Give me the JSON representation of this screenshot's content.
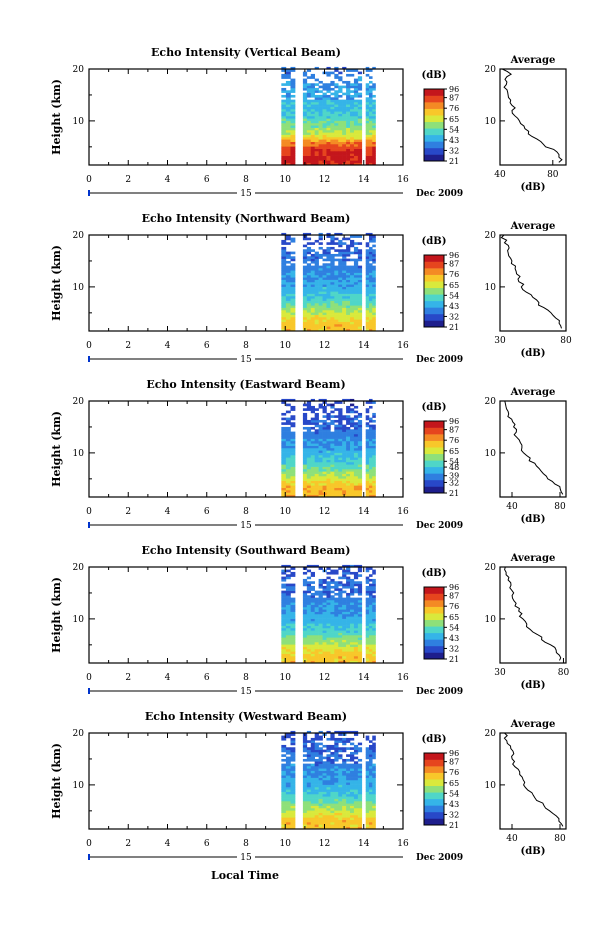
{
  "figure": {
    "xlabel": "Local Time",
    "date_label": "Dec 2009",
    "day_label": "15",
    "ylabel": "Height (km)",
    "cbar_unit": "(dB)",
    "avg_title": "Average",
    "avg_xlabel": "(dB)"
  },
  "colormap": [
    "#1e1e8c",
    "#2848c8",
    "#2f7fe0",
    "#35b4e8",
    "#4fd6c8",
    "#8ee07a",
    "#d9e93c",
    "#f8c72a",
    "#f48a24",
    "#e6451e",
    "#c4161c"
  ],
  "chart_data": [
    {
      "type": "heatmap",
      "title": "Echo Intensity (Vertical Beam)",
      "xlabel": "Local Time",
      "ylabel": "Height (km)",
      "xlim": [
        0,
        16
      ],
      "ylim": [
        1.5,
        20
      ],
      "xticks": [
        0,
        2,
        4,
        6,
        8,
        10,
        12,
        14,
        16
      ],
      "xtick_labels": [
        "0",
        "2",
        "4",
        "6",
        "8",
        "10",
        "12",
        "14",
        "16"
      ],
      "yticks": [
        10,
        20
      ],
      "ytick_labels": [
        "10",
        "20"
      ],
      "colorbar": {
        "unit": "(dB)",
        "range": [
          21,
          96
        ],
        "ticks": [
          21,
          32,
          43,
          54,
          65,
          76,
          87,
          96
        ],
        "labels": [
          "21",
          "32",
          "43",
          "54",
          "65",
          "76",
          "87",
          "96"
        ]
      },
      "data_segments": [
        [
          9.8,
          10.5
        ],
        [
          10.9,
          13.9
        ],
        [
          14.1,
          14.6
        ]
      ],
      "profile": [
        [
          1.5,
          90
        ],
        [
          3,
          92
        ],
        [
          5,
          85
        ],
        [
          7,
          65
        ],
        [
          9,
          56
        ],
        [
          11,
          48
        ],
        [
          13,
          46
        ],
        [
          15,
          42
        ],
        [
          17,
          40
        ],
        [
          19,
          36
        ]
      ],
      "average": {
        "title": "Average",
        "xlabel": "(dB)",
        "xlim": [
          40,
          90
        ],
        "xticks": [
          40,
          80
        ],
        "xtick_labels": [
          "40",
          "80"
        ],
        "yticks": [
          10,
          20
        ],
        "ytick_labels": [
          "10",
          "20"
        ],
        "profile": [
          [
            2,
            86
          ],
          [
            3,
            85
          ],
          [
            4,
            84
          ],
          [
            5,
            76
          ],
          [
            6,
            70
          ],
          [
            7,
            64
          ],
          [
            8,
            62
          ],
          [
            9,
            58
          ],
          [
            10,
            56
          ],
          [
            11,
            52
          ],
          [
            12,
            50
          ],
          [
            13,
            49
          ],
          [
            14,
            47
          ],
          [
            15,
            46
          ],
          [
            16,
            44
          ],
          [
            17,
            46
          ],
          [
            18,
            43
          ],
          [
            19,
            47
          ],
          [
            20,
            42
          ]
        ]
      }
    },
    {
      "type": "heatmap",
      "title": "Echo Intensity (Northward Beam)",
      "xlabel": "Local Time",
      "ylabel": "Height (km)",
      "xlim": [
        0,
        16
      ],
      "ylim": [
        1.5,
        20
      ],
      "xticks": [
        0,
        2,
        4,
        6,
        8,
        10,
        12,
        14,
        16
      ],
      "xtick_labels": [
        "0",
        "2",
        "4",
        "6",
        "8",
        "10",
        "12",
        "14",
        "16"
      ],
      "yticks": [
        10,
        20
      ],
      "ytick_labels": [
        "10",
        "20"
      ],
      "colorbar": {
        "unit": "(dB)",
        "range": [
          21,
          96
        ],
        "ticks": [
          21,
          32,
          43,
          54,
          65,
          76,
          87,
          96
        ],
        "labels": [
          "21",
          "32",
          "43",
          "54",
          "65",
          "76",
          "87",
          "96"
        ]
      },
      "data_segments": [
        [
          9.8,
          10.5
        ],
        [
          10.9,
          13.9
        ],
        [
          14.1,
          14.6
        ]
      ],
      "profile": [
        [
          1.5,
          72
        ],
        [
          3,
          72
        ],
        [
          5,
          62
        ],
        [
          7,
          52
        ],
        [
          9,
          46
        ],
        [
          11,
          42
        ],
        [
          13,
          39
        ],
        [
          15,
          36
        ],
        [
          17,
          34
        ],
        [
          19,
          32
        ]
      ],
      "average": {
        "title": "Average",
        "xlabel": "(dB)",
        "xlim": [
          30,
          80
        ],
        "xticks": [
          30,
          80
        ],
        "xtick_labels": [
          "30",
          "80"
        ],
        "yticks": [
          10,
          20
        ],
        "ytick_labels": [
          "10",
          "20"
        ],
        "profile": [
          [
            2,
            78
          ],
          [
            3,
            76
          ],
          [
            4,
            72
          ],
          [
            5,
            68
          ],
          [
            6,
            62
          ],
          [
            7,
            58
          ],
          [
            8,
            54
          ],
          [
            9,
            50
          ],
          [
            10,
            47
          ],
          [
            11,
            45
          ],
          [
            12,
            44
          ],
          [
            13,
            42
          ],
          [
            14,
            41
          ],
          [
            15,
            40
          ],
          [
            16,
            38
          ],
          [
            17,
            37
          ],
          [
            18,
            35
          ],
          [
            19,
            34
          ],
          [
            20,
            32
          ]
        ]
      }
    },
    {
      "type": "heatmap",
      "title": "Echo Intensity (Eastward Beam)",
      "xlabel": "Local Time",
      "ylabel": "Height (km)",
      "xlim": [
        0,
        16
      ],
      "ylim": [
        1.5,
        20
      ],
      "xticks": [
        0,
        2,
        4,
        6,
        8,
        10,
        12,
        14,
        16
      ],
      "xtick_labels": [
        "0",
        "2",
        "4",
        "6",
        "8",
        "10",
        "12",
        "14",
        "16"
      ],
      "yticks": [
        10,
        20
      ],
      "ytick_labels": [
        "10",
        "20"
      ],
      "colorbar": {
        "unit": "(dB)",
        "range": [
          21,
          96
        ],
        "ticks": [
          21,
          32,
          39,
          48,
          54,
          65,
          76,
          87,
          96
        ],
        "labels": [
          "21",
          "32",
          "39",
          "48",
          "54",
          "65",
          "76",
          "87",
          "96"
        ]
      },
      "data_segments": [
        [
          9.8,
          10.5
        ],
        [
          10.9,
          13.9
        ],
        [
          14.1,
          14.6
        ]
      ],
      "profile": [
        [
          1.5,
          74
        ],
        [
          3,
          74
        ],
        [
          5,
          64
        ],
        [
          7,
          54
        ],
        [
          9,
          47
        ],
        [
          11,
          42
        ],
        [
          13,
          38
        ],
        [
          15,
          35
        ],
        [
          17,
          33
        ],
        [
          19,
          31
        ]
      ],
      "average": {
        "title": "Average",
        "xlabel": "(dB)",
        "xlim": [
          30,
          85
        ],
        "xticks": [
          40,
          80
        ],
        "xtick_labels": [
          "40",
          "80"
        ],
        "yticks": [
          10,
          20
        ],
        "ytick_labels": [
          "10",
          "20"
        ],
        "profile": [
          [
            2,
            82
          ],
          [
            3,
            80
          ],
          [
            4,
            76
          ],
          [
            5,
            70
          ],
          [
            6,
            66
          ],
          [
            7,
            62
          ],
          [
            8,
            58
          ],
          [
            9,
            54
          ],
          [
            10,
            50
          ],
          [
            11,
            48
          ],
          [
            12,
            46
          ],
          [
            13,
            44
          ],
          [
            14,
            43
          ],
          [
            15,
            42
          ],
          [
            16,
            40
          ],
          [
            17,
            38
          ],
          [
            18,
            36
          ],
          [
            19,
            35
          ],
          [
            20,
            34
          ]
        ]
      }
    },
    {
      "type": "heatmap",
      "title": "Echo Intensity (Southward Beam)",
      "xlabel": "Local Time",
      "ylabel": "Height (km)",
      "xlim": [
        0,
        16
      ],
      "ylim": [
        1.5,
        20
      ],
      "xticks": [
        0,
        2,
        4,
        6,
        8,
        10,
        12,
        14,
        16
      ],
      "xtick_labels": [
        "0",
        "2",
        "4",
        "6",
        "8",
        "10",
        "12",
        "14",
        "16"
      ],
      "yticks": [
        10,
        20
      ],
      "ytick_labels": [
        "10",
        "20"
      ],
      "colorbar": {
        "unit": "(dB)",
        "range": [
          21,
          96
        ],
        "ticks": [
          21,
          32,
          43,
          54,
          65,
          76,
          87,
          96
        ],
        "labels": [
          "21",
          "32",
          "43",
          "54",
          "65",
          "76",
          "87",
          "96"
        ]
      },
      "data_segments": [
        [
          9.8,
          10.5
        ],
        [
          10.9,
          13.9
        ],
        [
          14.1,
          14.6
        ]
      ],
      "profile": [
        [
          1.5,
          72
        ],
        [
          3,
          72
        ],
        [
          5,
          62
        ],
        [
          7,
          52
        ],
        [
          9,
          46
        ],
        [
          11,
          42
        ],
        [
          13,
          39
        ],
        [
          15,
          36
        ],
        [
          17,
          34
        ],
        [
          19,
          32
        ]
      ],
      "average": {
        "title": "Average",
        "xlabel": "(dB)",
        "xlim": [
          30,
          82
        ],
        "xticks": [
          30,
          80
        ],
        "xtick_labels": [
          "30",
          "80"
        ],
        "yticks": [
          10,
          20
        ],
        "ytick_labels": [
          "10",
          "20"
        ],
        "profile": [
          [
            2,
            78
          ],
          [
            3,
            76
          ],
          [
            4,
            74
          ],
          [
            5,
            70
          ],
          [
            6,
            64
          ],
          [
            7,
            58
          ],
          [
            8,
            54
          ],
          [
            9,
            50
          ],
          [
            10,
            48
          ],
          [
            11,
            46
          ],
          [
            12,
            44
          ],
          [
            13,
            42
          ],
          [
            14,
            41
          ],
          [
            15,
            40
          ],
          [
            16,
            38
          ],
          [
            17,
            37
          ],
          [
            18,
            36
          ],
          [
            19,
            34
          ],
          [
            20,
            33
          ]
        ]
      }
    },
    {
      "type": "heatmap",
      "title": "Echo Intensity (Westward Beam)",
      "xlabel": "Local Time",
      "ylabel": "Height (km)",
      "xlim": [
        0,
        16
      ],
      "ylim": [
        1.5,
        20
      ],
      "xticks": [
        0,
        2,
        4,
        6,
        8,
        10,
        12,
        14,
        16
      ],
      "xtick_labels": [
        "0",
        "2",
        "4",
        "6",
        "8",
        "10",
        "12",
        "14",
        "16"
      ],
      "yticks": [
        10,
        20
      ],
      "ytick_labels": [
        "10",
        "20"
      ],
      "colorbar": {
        "unit": "(dB)",
        "range": [
          21,
          96
        ],
        "ticks": [
          21,
          32,
          43,
          54,
          65,
          76,
          87,
          96
        ],
        "labels": [
          "21",
          "32",
          "43",
          "54",
          "65",
          "76",
          "87",
          "96"
        ]
      },
      "data_segments": [
        [
          9.8,
          10.5
        ],
        [
          10.9,
          13.9
        ],
        [
          14.1,
          14.6
        ]
      ],
      "profile": [
        [
          1.5,
          72
        ],
        [
          3,
          72
        ],
        [
          5,
          62
        ],
        [
          7,
          52
        ],
        [
          9,
          46
        ],
        [
          11,
          42
        ],
        [
          13,
          39
        ],
        [
          15,
          36
        ],
        [
          17,
          34
        ],
        [
          19,
          32
        ]
      ],
      "average": {
        "title": "Average",
        "xlabel": "(dB)",
        "xlim": [
          30,
          85
        ],
        "xticks": [
          40,
          80
        ],
        "xtick_labels": [
          "40",
          "80"
        ],
        "yticks": [
          10,
          20
        ],
        "ytick_labels": [
          "10",
          "20"
        ],
        "profile": [
          [
            2,
            82
          ],
          [
            3,
            80
          ],
          [
            4,
            76
          ],
          [
            5,
            70
          ],
          [
            6,
            66
          ],
          [
            7,
            62
          ],
          [
            8,
            58
          ],
          [
            9,
            54
          ],
          [
            10,
            50
          ],
          [
            11,
            48
          ],
          [
            12,
            46
          ],
          [
            13,
            44
          ],
          [
            14,
            42
          ],
          [
            15,
            41
          ],
          [
            16,
            40
          ],
          [
            17,
            38
          ],
          [
            18,
            36
          ],
          [
            19,
            35
          ],
          [
            20,
            34
          ]
        ]
      }
    }
  ]
}
